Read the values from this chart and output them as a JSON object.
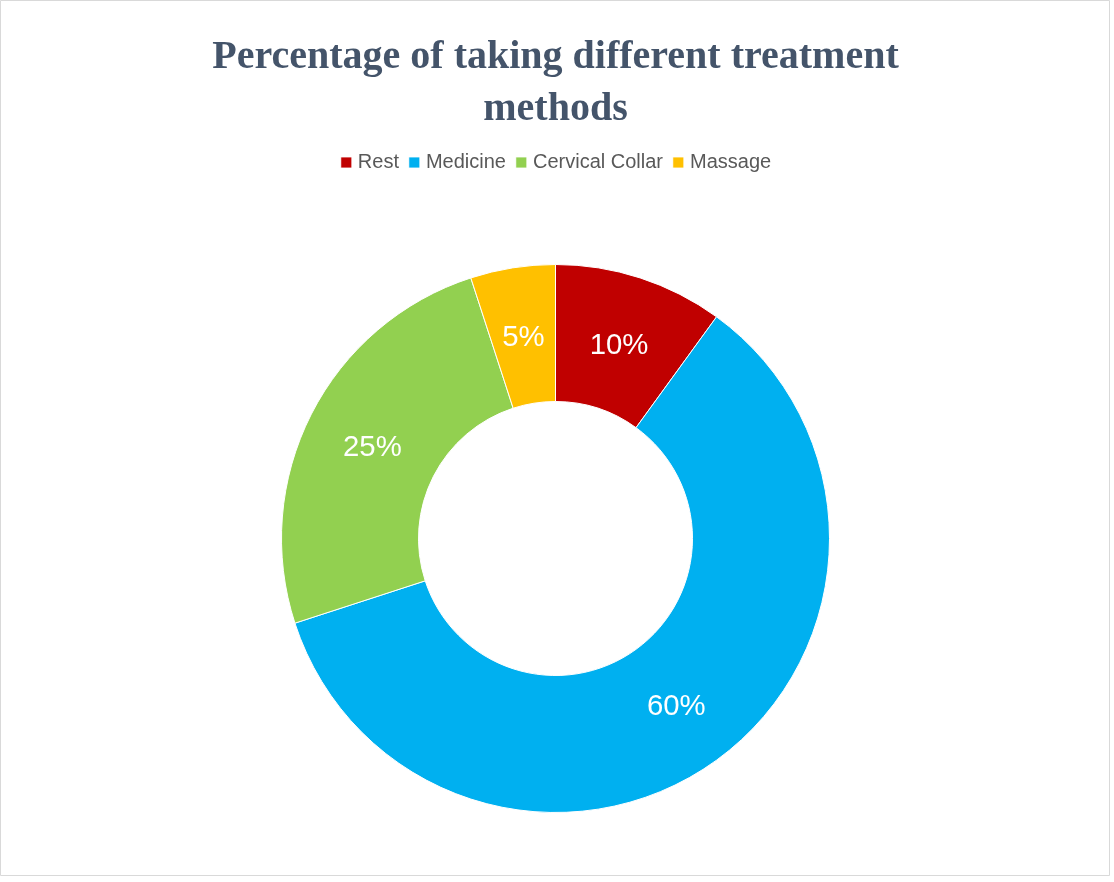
{
  "chart_data": {
    "type": "donut",
    "title": "Percentage of taking different treatment\nmethods",
    "categories": [
      "Rest",
      "Medicine",
      "Cervical Collar",
      "Massage"
    ],
    "values": [
      10,
      60,
      25,
      5
    ],
    "colors": [
      "#c00000",
      "#00b0f0",
      "#92d050",
      "#ffc000"
    ],
    "value_labels": [
      "10%",
      "60%",
      "25%",
      "5%"
    ],
    "legend": "top"
  }
}
